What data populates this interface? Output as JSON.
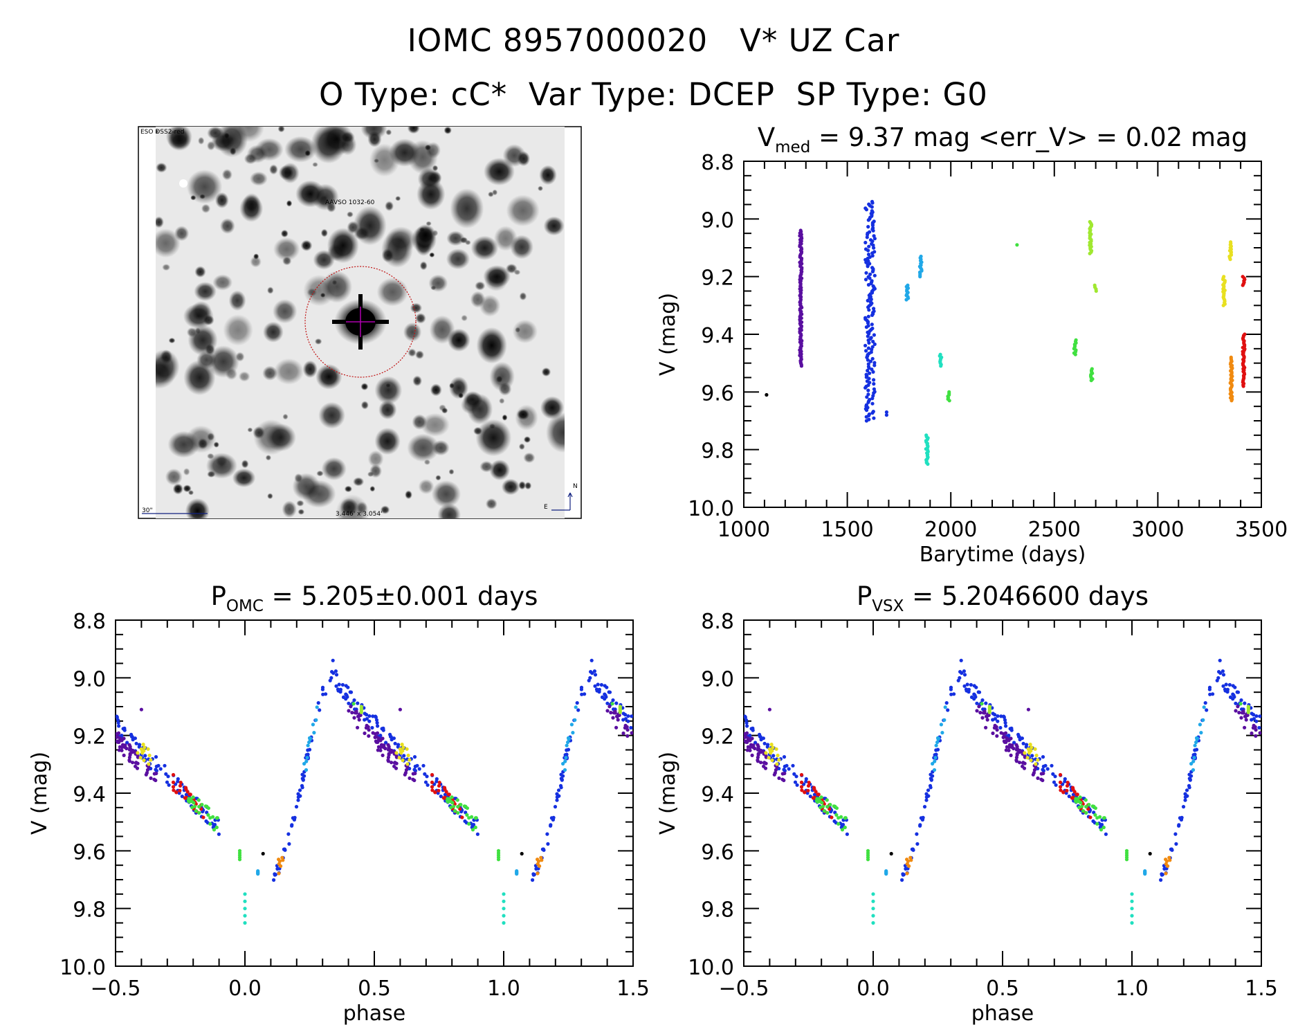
{
  "header": {
    "line1": "IOMC 8957000020   V* UZ Car",
    "line2": "O Type: cC*  Var Type: DCEP  SP Type: G0"
  },
  "thumbnail": {
    "source_label": "ESO DSS2-red",
    "target_label": "AAVSO 1032-60",
    "scale_label": "30\"",
    "size_label": "3.446' x 3.054'",
    "east_label": "E",
    "north_label": "N"
  },
  "colors": {
    "purple": "#5a0fa0",
    "darkpurple": "#2a0060",
    "blue": "#1530e0",
    "darkblue": "#2020b0",
    "cyan": "#20a8e8",
    "aqua": "#20e0c0",
    "green": "#40e040",
    "lime": "#a0e830",
    "yellow": "#e8e020",
    "orange": "#f08a10",
    "red": "#e01010",
    "black": "#000000",
    "reticle_red": "#c01010",
    "reticle_magenta": "#b000b0",
    "thumb_text_blue": "#102080"
  },
  "chart_data": [
    {
      "id": "timeseries",
      "type": "scatter",
      "title": "V_med = 9.37 mag <err_V> = 0.02 mag",
      "title_parts": {
        "main": "V",
        "sub": "med",
        "rest": " = 9.37 mag <err_V> = 0.02 mag"
      },
      "xlabel": "Barytime (days)",
      "ylabel": "V (mag)",
      "xlim": [
        1000,
        3500
      ],
      "ylim": [
        10.0,
        8.8
      ],
      "x_ticks": [
        "1000",
        "1500",
        "2000",
        "2500",
        "3000",
        "3500"
      ],
      "y_ticks": [
        "8.8",
        "9.0",
        "9.2",
        "9.4",
        "9.6",
        "9.8",
        "10.0"
      ],
      "series": [
        {
          "name": "epoch-1100",
          "color": "black",
          "points": [
            [
              1110,
              9.61
            ]
          ]
        },
        {
          "name": "epoch-1270",
          "color": "purple",
          "x": 1275,
          "vmin": 9.04,
          "vmax": 9.51
        },
        {
          "name": "epoch-1610",
          "color": "blue",
          "x": 1610,
          "vmin": 8.94,
          "vmax": 9.7
        },
        {
          "name": "epoch-1690",
          "color": "blue",
          "points": [
            [
              1690,
              9.67
            ],
            [
              1690,
              9.68
            ]
          ]
        },
        {
          "name": "epoch-1790",
          "color": "cyan",
          "x": 1790,
          "vmin": 9.23,
          "vmax": 9.28
        },
        {
          "name": "epoch-1850",
          "color": "cyan",
          "x": 1855,
          "vmin": 9.13,
          "vmax": 9.2
        },
        {
          "name": "epoch-1880",
          "color": "aqua",
          "x": 1885,
          "vmin": 9.75,
          "vmax": 9.85
        },
        {
          "name": "epoch-1950",
          "color": "aqua",
          "x": 1950,
          "vmin": 9.47,
          "vmax": 9.51
        },
        {
          "name": "epoch-1990",
          "color": "green",
          "x": 1990,
          "vmin": 9.6,
          "vmax": 9.63
        },
        {
          "name": "epoch-2320",
          "color": "green",
          "points": [
            [
              2320,
              9.09
            ]
          ]
        },
        {
          "name": "epoch-2600",
          "color": "green",
          "x": 2600,
          "vmin": 9.42,
          "vmax": 9.47
        },
        {
          "name": "epoch-2675",
          "color": "lime",
          "x": 2675,
          "vmin": 9.01,
          "vmax": 9.12
        },
        {
          "name": "epoch-2680",
          "color": "green",
          "x": 2680,
          "vmin": 9.52,
          "vmax": 9.56
        },
        {
          "name": "epoch-2700",
          "color": "lime",
          "x": 2700,
          "vmin": 9.23,
          "vmax": 9.25
        },
        {
          "name": "epoch-3320",
          "color": "yellow",
          "x": 3320,
          "vmin": 9.2,
          "vmax": 9.3
        },
        {
          "name": "epoch-3350",
          "color": "yellow",
          "x": 3350,
          "vmin": 9.08,
          "vmax": 9.14
        },
        {
          "name": "epoch-3355",
          "color": "orange",
          "x": 3355,
          "vmin": 9.48,
          "vmax": 9.63
        },
        {
          "name": "epoch-3410",
          "color": "red",
          "x": 3415,
          "vmin": 9.2,
          "vmax": 9.23
        },
        {
          "name": "epoch-3415",
          "color": "red",
          "x": 3415,
          "vmin": 9.4,
          "vmax": 9.58
        }
      ]
    },
    {
      "id": "phase-omc",
      "type": "scatter",
      "title": "P_OMC = 5.205±0.001 days",
      "title_parts": {
        "main": "P",
        "sub": "OMC",
        "rest": " = 5.205±0.001 days"
      },
      "xlabel": "phase",
      "ylabel": "V (mag)",
      "xlim": [
        -0.5,
        1.5
      ],
      "ylim": [
        10.0,
        8.8
      ],
      "x_ticks": [
        "−0.5",
        "0.0",
        "0.5",
        "1.0",
        "1.5"
      ],
      "y_ticks": [
        "8.8",
        "9.0",
        "9.2",
        "9.4",
        "9.6",
        "9.8",
        "10.0"
      ]
    },
    {
      "id": "phase-vsx",
      "type": "scatter",
      "title": "P_VSX = 5.2046600 days",
      "title_parts": {
        "main": "P",
        "sub": "VSX",
        "rest": " = 5.2046600 days"
      },
      "xlabel": "phase",
      "ylabel": "V (mag)",
      "xlim": [
        -0.5,
        1.5
      ],
      "ylim": [
        10.0,
        8.8
      ],
      "x_ticks": [
        "−0.5",
        "0.0",
        "0.5",
        "1.0",
        "1.5"
      ],
      "y_ticks": [
        "8.8",
        "9.0",
        "9.2",
        "9.4",
        "9.6",
        "9.8",
        "10.0"
      ]
    }
  ],
  "light_curve": {
    "description_of_shape": "phased light curve",
    "max_phase": 0.35,
    "min_phase": 0.1,
    "v_max": 9.0,
    "v_min": 9.68,
    "groups": [
      {
        "color": "blue",
        "p0": 0.1,
        "p1": 0.35,
        "rising": true
      },
      {
        "color": "blue",
        "p0": 0.35,
        "p1": 0.9,
        "rising": false
      },
      {
        "color": "purple",
        "p0": 0.4,
        "p1": 0.58,
        "rising": false
      },
      {
        "color": "purple",
        "p0": 0.5,
        "p1": 0.66,
        "rising": false
      },
      {
        "color": "red",
        "p0": 0.72,
        "p1": 0.84,
        "rising": false
      },
      {
        "color": "green",
        "p0": 0.78,
        "p1": 0.9,
        "rising": false
      },
      {
        "color": "yellow",
        "p0": 0.58,
        "p1": 0.64,
        "rising": false
      },
      {
        "color": "cyan",
        "p0": 0.22,
        "p1": 0.28,
        "rising": true
      },
      {
        "color": "orange",
        "p0": 0.12,
        "p1": 0.15,
        "rising": true
      }
    ],
    "extra_points": [
      {
        "color": "aqua",
        "phase": 0.0,
        "vmin": 9.75,
        "vmax": 9.85
      },
      {
        "color": "cyan",
        "phase": 0.05,
        "vmin": 9.67,
        "vmax": 9.68
      },
      {
        "color": "black",
        "phase": 0.07,
        "vmin": 9.61,
        "vmax": 9.61
      },
      {
        "color": "green",
        "phase": 0.98,
        "vmin": 9.6,
        "vmax": 9.63
      },
      {
        "color": "purple",
        "phase": 0.6,
        "vmin": 9.11,
        "vmax": 9.11
      },
      {
        "color": "blue",
        "phase": 0.34,
        "vmin": 8.94,
        "vmax": 8.94
      },
      {
        "color": "green",
        "phase": 0.42,
        "vmin": 9.09,
        "vmax": 9.09
      },
      {
        "color": "lime",
        "phase": 0.45,
        "vmin": 9.1,
        "vmax": 9.12
      }
    ]
  }
}
